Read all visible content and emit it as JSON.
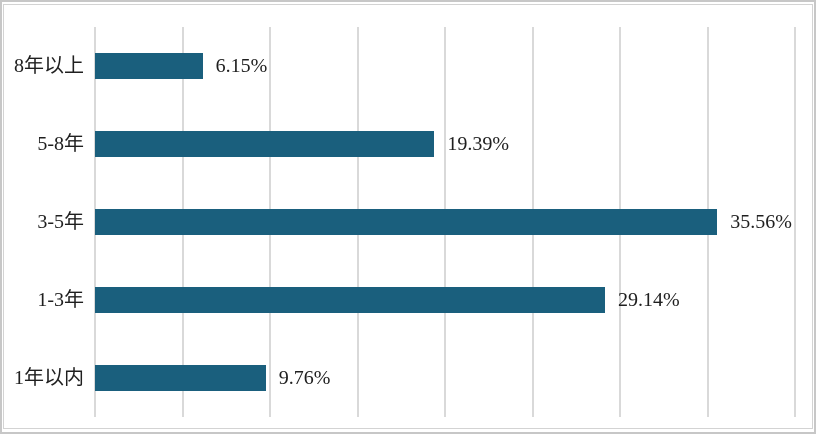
{
  "chart_data": {
    "type": "bar",
    "orientation": "horizontal",
    "title": "",
    "xlabel": "",
    "ylabel": "",
    "categories": [
      "8年以上",
      "5-8年",
      "3-5年",
      "1-3年",
      "1年以内"
    ],
    "values": [
      6.15,
      19.39,
      35.56,
      29.14,
      9.76
    ],
    "value_labels": [
      "6.15%",
      "19.39%",
      "35.56%",
      "29.14%",
      "9.76%"
    ],
    "xlim": [
      0,
      40
    ],
    "gridline_step": 5,
    "grid": "vertical-gridlines-only",
    "legend": "none",
    "axis_tick_labels": "none",
    "colors": {
      "bar": "#1A5F7D",
      "gridline": "#D9D9D9",
      "text": "#1F1F1F",
      "frame_border": "#D3D3D3",
      "outer_edge": "#C7C7C7",
      "background": "#FFFFFF"
    }
  }
}
